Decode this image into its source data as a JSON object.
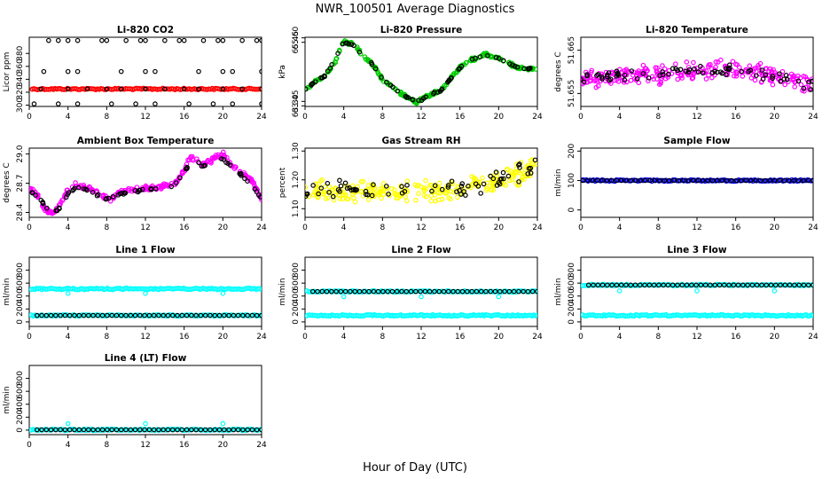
{
  "page": {
    "title": "NWR_100501  Average Diagnostics",
    "xlabel": "Hour of Day (UTC)"
  },
  "colors": {
    "black": "#000000",
    "red": "#ff0000",
    "green": "#00cc00",
    "magenta": "#ff00ff",
    "yellow": "#ffff00",
    "blue": "#0000ff",
    "cyan": "#00ffff"
  },
  "chart_data": [
    {
      "id": "co2",
      "type": "scatter",
      "title": "Li-820 CO2",
      "ylabel": "Licor ppm",
      "xlim": [
        0,
        24
      ],
      "ylim": [
        298,
        405
      ],
      "xticks": [
        0,
        4,
        8,
        12,
        16,
        20,
        24
      ],
      "yticks": [
        300,
        320,
        340,
        360,
        380
      ],
      "series": [
        {
          "name": "continuous",
          "color": "red",
          "kind": "band",
          "x": [
            0.3,
            24
          ],
          "y": [
            325,
            325
          ]
        },
        {
          "name": "high",
          "color": "black",
          "x": [
            2,
            3,
            4,
            5,
            7.5,
            8,
            10,
            11.5,
            12,
            14,
            15.5,
            16,
            18,
            19.5,
            20,
            22,
            23.5,
            24
          ],
          "y": [
            400,
            400,
            400,
            400,
            400,
            400,
            400,
            400,
            400,
            400,
            400,
            400,
            400,
            400,
            400,
            400,
            400,
            400
          ]
        },
        {
          "name": "mid",
          "color": "black",
          "x": [
            1.5,
            4,
            5,
            9.5,
            12,
            13,
            17.5,
            20,
            21,
            24
          ],
          "y": [
            352,
            352,
            352,
            352,
            352,
            352,
            352,
            352,
            352,
            352
          ]
        },
        {
          "name": "low",
          "color": "black",
          "x": [
            0.5,
            3,
            5,
            8.5,
            11,
            13,
            16.5,
            19,
            21,
            24
          ],
          "y": [
            302,
            302,
            302,
            302,
            302,
            302,
            302,
            302,
            302,
            302
          ]
        },
        {
          "name": "at-line",
          "color": "black",
          "x": [
            1.2,
            4,
            6,
            8,
            9.5,
            12,
            14,
            16,
            17.5,
            20,
            22,
            24
          ],
          "y": [
            325,
            325,
            325,
            325,
            325,
            325,
            325,
            325,
            325,
            325,
            325,
            325
          ]
        }
      ]
    },
    {
      "id": "pressure",
      "type": "scatter",
      "title": "Li-820 Pressure",
      "ylabel": "kPa",
      "xlim": [
        0,
        24
      ],
      "ylim": [
        63.28,
        65.62
      ],
      "xticks": [
        0,
        4,
        8,
        12,
        16,
        20,
        24
      ],
      "yticks": [
        63.3,
        63.45,
        65.45,
        65.6
      ],
      "ytick_labels": [
        "63.30",
        "63.45",
        "65.45",
        "65.60"
      ],
      "series": [
        {
          "name": "green",
          "color": "green",
          "kind": "cloud",
          "spread": 0.06,
          "x": [
            0,
            1,
            2,
            3,
            3.5,
            4,
            4.5,
            5,
            6,
            7,
            8,
            9,
            10,
            11,
            11.5,
            12,
            13,
            14,
            15,
            16,
            17,
            18,
            18.5,
            19,
            20,
            21,
            22,
            23,
            24
          ],
          "y": [
            63.85,
            64.1,
            64.3,
            64.7,
            65.1,
            65.48,
            65.42,
            65.4,
            65.0,
            64.7,
            64.2,
            63.95,
            63.7,
            63.5,
            63.42,
            63.5,
            63.7,
            63.8,
            64.2,
            64.6,
            64.85,
            64.95,
            65.05,
            65.0,
            64.9,
            64.75,
            64.6,
            64.55,
            64.55
          ]
        },
        {
          "name": "black",
          "color": "black",
          "kind": "cloud",
          "spread": 0.03,
          "x": [
            0,
            1,
            2,
            3,
            4,
            5,
            6,
            7,
            8,
            9,
            10,
            11,
            12,
            13,
            14,
            15,
            16,
            17,
            18,
            19,
            20,
            21,
            22,
            23,
            24
          ],
          "y": [
            63.85,
            64.1,
            64.3,
            64.8,
            65.45,
            65.35,
            65.0,
            64.7,
            64.2,
            63.95,
            63.7,
            63.5,
            63.5,
            63.7,
            63.8,
            64.2,
            64.6,
            64.85,
            64.95,
            65.0,
            64.9,
            64.75,
            64.6,
            64.55,
            64.55
          ]
        }
      ]
    },
    {
      "id": "li820temp",
      "type": "scatter",
      "title": "Li-820 Temperature",
      "ylabel": "degrees C",
      "xlim": [
        0,
        24
      ],
      "ylim": [
        51.652,
        51.668
      ],
      "xticks": [
        0,
        4,
        8,
        12,
        16,
        20,
        24
      ],
      "yticks": [
        51.655,
        51.665
      ],
      "series": [
        {
          "name": "magenta",
          "color": "magenta",
          "kind": "cloud",
          "spread": 0.0025,
          "x": [
            0,
            2,
            4,
            6,
            8,
            10,
            12,
            14,
            16,
            18,
            20,
            22,
            24
          ],
          "y": [
            51.658,
            51.6585,
            51.659,
            51.6595,
            51.6595,
            51.66,
            51.6605,
            51.6605,
            51.6605,
            51.66,
            51.659,
            51.658,
            51.6565
          ]
        },
        {
          "name": "black",
          "color": "black",
          "kind": "cloud",
          "spread": 0.0015,
          "x": [
            0,
            4,
            8,
            12,
            16,
            20,
            24
          ],
          "y": [
            51.6585,
            51.659,
            51.6595,
            51.6605,
            51.6605,
            51.659,
            51.657
          ]
        }
      ]
    },
    {
      "id": "boxtemp",
      "type": "scatter",
      "title": "Ambient Box Temperature",
      "ylabel": "degrees C",
      "xlim": [
        0,
        24
      ],
      "ylim": [
        28.35,
        29.06
      ],
      "xticks": [
        0,
        4,
        8,
        12,
        16,
        20,
        24
      ],
      "yticks": [
        28.4,
        28.7,
        29.0
      ],
      "ytick_labels": [
        "28.4",
        "28.7",
        "29.0"
      ],
      "series": [
        {
          "name": "magenta",
          "color": "magenta",
          "kind": "cloud",
          "spread": 0.03,
          "x": [
            0,
            0.5,
            1,
            1.5,
            2,
            2.5,
            3,
            3.5,
            4,
            4.5,
            5,
            6,
            7,
            8,
            8.5,
            9,
            10,
            11,
            12,
            13,
            14,
            15,
            16,
            16.5,
            17,
            18,
            19,
            20,
            21,
            22,
            23,
            24
          ],
          "y": [
            28.65,
            28.6,
            28.55,
            28.45,
            28.4,
            28.38,
            28.45,
            28.55,
            28.62,
            28.68,
            28.68,
            28.65,
            28.6,
            28.55,
            28.52,
            28.6,
            28.62,
            28.63,
            28.65,
            28.65,
            28.68,
            28.68,
            28.82,
            28.95,
            28.95,
            28.88,
            28.95,
            29.0,
            28.88,
            28.8,
            28.72,
            28.55
          ]
        },
        {
          "name": "black",
          "color": "black",
          "kind": "cloud",
          "spread": 0.015,
          "x": [
            0,
            1,
            2,
            3,
            4,
            5,
            6,
            7,
            8,
            9,
            10,
            11,
            12,
            13,
            14,
            15,
            16,
            17,
            18,
            19,
            20,
            21,
            22,
            23,
            24
          ],
          "y": [
            28.63,
            28.55,
            28.42,
            28.42,
            28.6,
            28.66,
            28.63,
            28.58,
            28.53,
            28.58,
            28.6,
            28.62,
            28.63,
            28.65,
            28.66,
            28.68,
            28.82,
            28.93,
            28.87,
            28.93,
            28.95,
            28.86,
            28.78,
            28.68,
            28.54
          ]
        }
      ]
    },
    {
      "id": "rh",
      "type": "scatter",
      "title": "Gas Stream RH",
      "ylabel": "percent",
      "xlim": [
        0,
        24
      ],
      "ylim": [
        1.07,
        1.31
      ],
      "xticks": [
        0,
        4,
        8,
        12,
        16,
        20,
        24
      ],
      "yticks": [
        1.1,
        1.2,
        1.3
      ],
      "ytick_labels": [
        "1.10",
        "1.20",
        "1.30"
      ],
      "series": [
        {
          "name": "yellow",
          "color": "yellow",
          "kind": "cloud",
          "spread": 0.045,
          "x": [
            0,
            4,
            8,
            12,
            16,
            18,
            20,
            22,
            24
          ],
          "y": [
            1.16,
            1.16,
            1.16,
            1.16,
            1.17,
            1.18,
            1.2,
            1.22,
            1.25
          ]
        },
        {
          "name": "black",
          "color": "black",
          "kind": "cloud",
          "spread": 0.035,
          "x": [
            0,
            4,
            8,
            12,
            16,
            20,
            24
          ],
          "y": [
            1.16,
            1.17,
            1.16,
            1.16,
            1.17,
            1.2,
            1.25
          ]
        }
      ]
    },
    {
      "id": "sampleflow",
      "type": "scatter",
      "title": "Sample Flow",
      "ylabel": "ml/min",
      "xlim": [
        0,
        24
      ],
      "ylim": [
        -25,
        210
      ],
      "xticks": [
        0,
        4,
        8,
        12,
        16,
        20,
        24
      ],
      "yticks": [
        0,
        100,
        200
      ],
      "series": [
        {
          "name": "blue",
          "color": "blue",
          "kind": "band",
          "x": [
            0.2,
            24
          ],
          "y": [
            100,
            100
          ]
        },
        {
          "name": "black",
          "color": "black",
          "kind": "row",
          "x": [
            0.2,
            24
          ],
          "y": [
            100,
            100
          ]
        }
      ]
    },
    {
      "id": "line1",
      "type": "scatter",
      "title": "Line 1 Flow",
      "ylabel": "ml/min",
      "xlim": [
        0,
        24
      ],
      "ylim": [
        -70,
        1000
      ],
      "xticks": [
        0,
        4,
        8,
        12,
        16,
        20,
        24
      ],
      "yticks": [
        0,
        200,
        400,
        600,
        800
      ],
      "series": [
        {
          "name": "cyan-high",
          "color": "cyan",
          "kind": "band",
          "x": [
            0.2,
            24
          ],
          "y": [
            510,
            510
          ]
        },
        {
          "name": "cyan-low",
          "color": "cyan",
          "kind": "band",
          "x": [
            0.2,
            24
          ],
          "y": [
            100,
            100
          ]
        },
        {
          "name": "black",
          "color": "black",
          "kind": "row",
          "x": [
            0.8,
            24
          ],
          "y": [
            100,
            100
          ]
        },
        {
          "name": "cyan-outliers",
          "color": "cyan",
          "x": [
            4,
            12,
            20
          ],
          "y": [
            440,
            440,
            440
          ]
        }
      ]
    },
    {
      "id": "line2",
      "type": "scatter",
      "title": "Line 2 Flow",
      "ylabel": "ml/min",
      "xlim": [
        0,
        24
      ],
      "ylim": [
        -70,
        1000
      ],
      "xticks": [
        0,
        4,
        8,
        12,
        16,
        20,
        24
      ],
      "yticks": [
        0,
        200,
        400,
        600,
        800
      ],
      "series": [
        {
          "name": "cyan-low",
          "color": "cyan",
          "kind": "band",
          "x": [
            0.2,
            24
          ],
          "y": [
            100,
            100
          ]
        },
        {
          "name": "cyan-high",
          "color": "cyan",
          "kind": "band",
          "x": [
            0.2,
            24
          ],
          "y": [
            470,
            470
          ]
        },
        {
          "name": "black",
          "color": "black",
          "kind": "row",
          "x": [
            0.8,
            24
          ],
          "y": [
            470,
            470
          ]
        },
        {
          "name": "cyan-outliers",
          "color": "cyan",
          "x": [
            4,
            12,
            20
          ],
          "y": [
            390,
            390,
            390
          ]
        }
      ]
    },
    {
      "id": "line3",
      "type": "scatter",
      "title": "Line 3 Flow",
      "ylabel": "ml/min",
      "xlim": [
        0,
        24
      ],
      "ylim": [
        -70,
        1000
      ],
      "xticks": [
        0,
        4,
        8,
        12,
        16,
        20,
        24
      ],
      "yticks": [
        0,
        200,
        400,
        600,
        800
      ],
      "series": [
        {
          "name": "cyan-low",
          "color": "cyan",
          "kind": "band",
          "x": [
            0.2,
            24
          ],
          "y": [
            100,
            100
          ]
        },
        {
          "name": "cyan-high",
          "color": "cyan",
          "kind": "band",
          "x": [
            0.2,
            24
          ],
          "y": [
            570,
            570
          ]
        },
        {
          "name": "black",
          "color": "black",
          "kind": "row",
          "x": [
            0.8,
            24
          ],
          "y": [
            570,
            570
          ]
        },
        {
          "name": "cyan-outliers",
          "color": "cyan",
          "x": [
            4,
            12,
            20
          ],
          "y": [
            480,
            480,
            480
          ]
        }
      ]
    },
    {
      "id": "line4",
      "type": "scatter",
      "title": "Line 4 (LT) Flow",
      "ylabel": "ml/min",
      "xlim": [
        0,
        24
      ],
      "ylim": [
        -70,
        1000
      ],
      "xticks": [
        0,
        4,
        8,
        12,
        16,
        20,
        24
      ],
      "yticks": [
        0,
        200,
        400,
        600,
        800
      ],
      "series": [
        {
          "name": "cyan",
          "color": "cyan",
          "kind": "band",
          "x": [
            0.2,
            24
          ],
          "y": [
            5,
            5
          ]
        },
        {
          "name": "black",
          "color": "black",
          "kind": "row",
          "x": [
            0.8,
            24
          ],
          "y": [
            5,
            5
          ]
        },
        {
          "name": "cyan-outliers",
          "color": "cyan",
          "x": [
            4,
            12,
            20
          ],
          "y": [
            100,
            100,
            100
          ]
        }
      ]
    }
  ]
}
